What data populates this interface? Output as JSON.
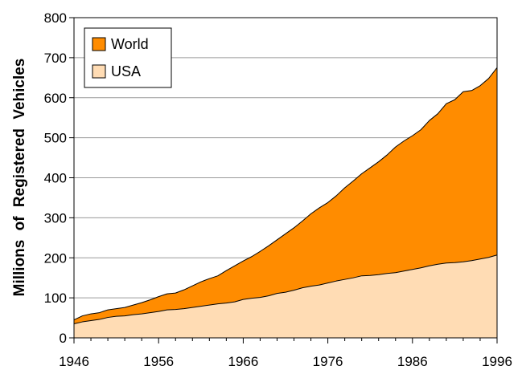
{
  "chart_data": {
    "type": "area",
    "title": "",
    "xlabel": "",
    "ylabel": "Millions of Registered Vehicles",
    "xlim": [
      1946,
      1996
    ],
    "ylim": [
      0,
      800
    ],
    "grid": true,
    "legend_position": "top-left",
    "x_ticks": [
      "1946",
      "1956",
      "1966",
      "1976",
      "1986",
      "1996"
    ],
    "y_ticks": [
      "0",
      "100",
      "200",
      "300",
      "400",
      "500",
      "600",
      "700",
      "800"
    ],
    "x": [
      1946,
      1947,
      1948,
      1949,
      1950,
      1951,
      1952,
      1953,
      1954,
      1955,
      1956,
      1957,
      1958,
      1959,
      1960,
      1961,
      1962,
      1963,
      1964,
      1965,
      1966,
      1967,
      1968,
      1969,
      1970,
      1971,
      1972,
      1973,
      1974,
      1975,
      1976,
      1977,
      1978,
      1979,
      1980,
      1981,
      1982,
      1983,
      1984,
      1985,
      1986,
      1987,
      1988,
      1989,
      1990,
      1991,
      1992,
      1993,
      1994,
      1995,
      1996
    ],
    "series": [
      {
        "name": "World",
        "color": "#ff8c00",
        "values": [
          45,
          55,
          60,
          63,
          70,
          73,
          76,
          82,
          88,
          95,
          103,
          110,
          112,
          120,
          130,
          140,
          148,
          155,
          168,
          180,
          192,
          203,
          216,
          230,
          245,
          260,
          275,
          292,
          310,
          325,
          338,
          355,
          375,
          392,
          410,
          425,
          440,
          457,
          477,
          492,
          505,
          520,
          543,
          560,
          585,
          595,
          615,
          618,
          630,
          648,
          675
        ]
      },
      {
        "name": "USA",
        "color": "#ffdcb4",
        "values": [
          35,
          40,
          43,
          46,
          51,
          54,
          55,
          58,
          60,
          63,
          66,
          70,
          71,
          73,
          76,
          79,
          82,
          85,
          87,
          90,
          96,
          99,
          101,
          105,
          111,
          114,
          119,
          125,
          129,
          132,
          137,
          142,
          146,
          150,
          155,
          156,
          158,
          161,
          163,
          167,
          171,
          175,
          180,
          184,
          187,
          188,
          190,
          193,
          197,
          201,
          207
        ]
      }
    ]
  }
}
